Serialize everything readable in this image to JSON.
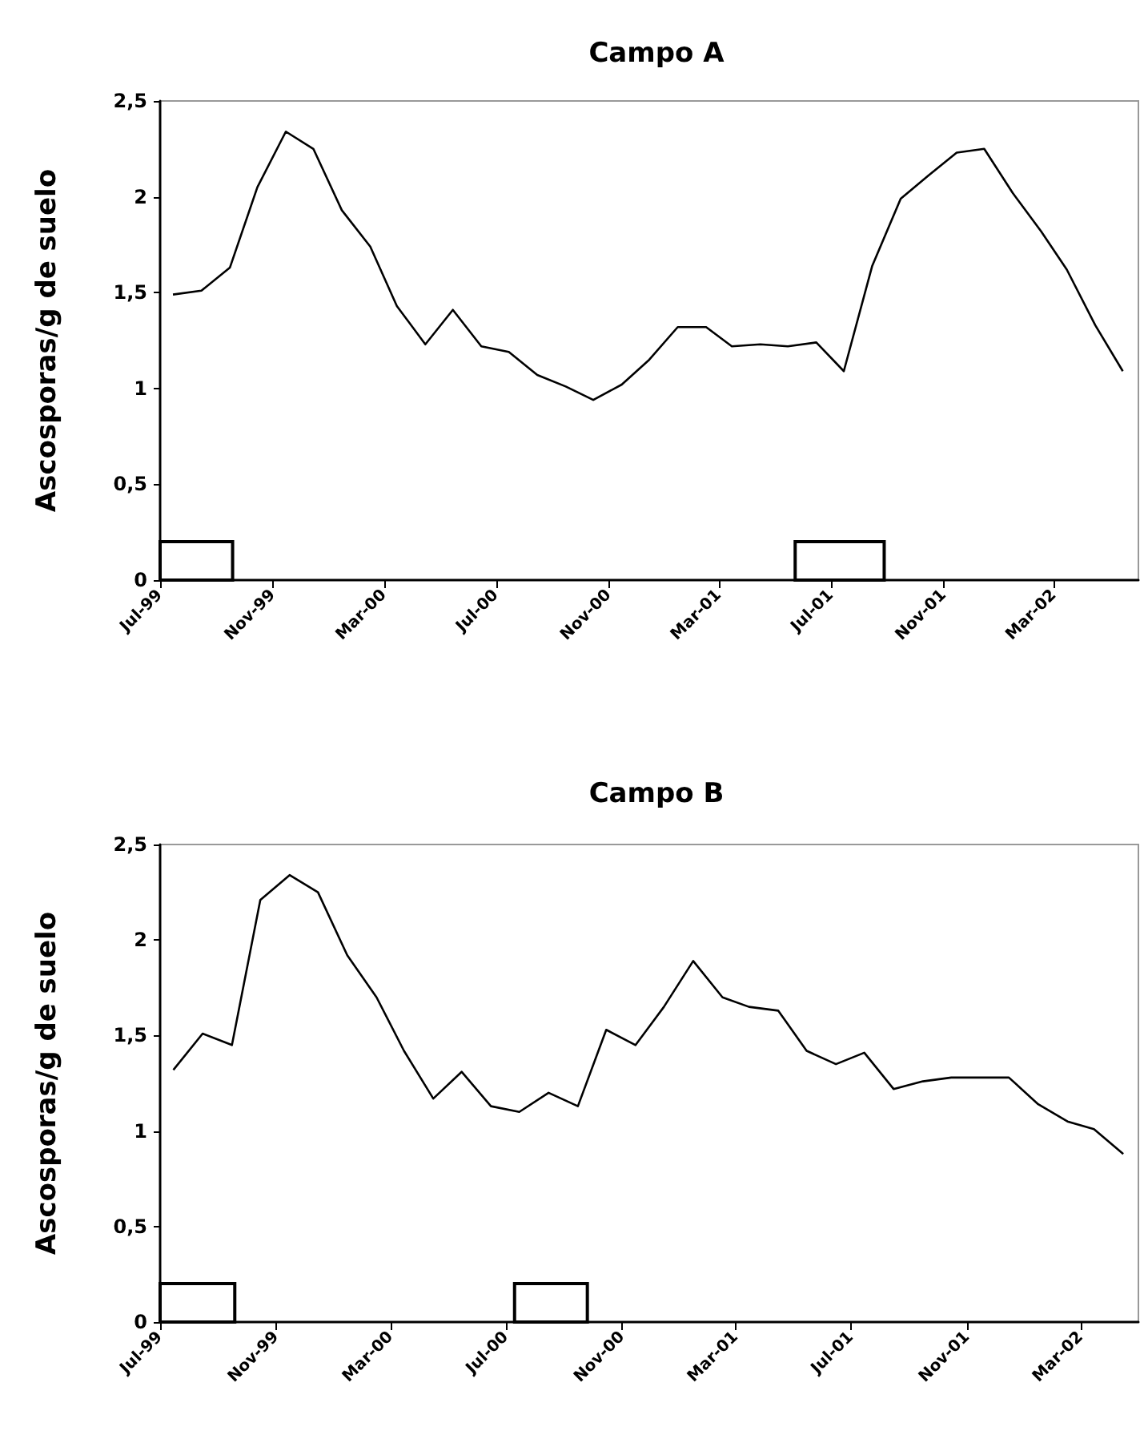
{
  "chart_data": [
    {
      "type": "line",
      "title": "Campo A",
      "ylabel": "Ascosporas/g de suelo",
      "x": [
        "1999-07-15",
        "1999-08-15",
        "1999-09-15",
        "1999-10-15",
        "1999-11-15",
        "1999-12-15",
        "2000-01-15",
        "2000-02-15",
        "2000-03-15",
        "2000-04-15",
        "2000-05-15",
        "2000-06-15",
        "2000-07-15",
        "2000-08-15",
        "2000-09-15",
        "2000-10-15",
        "2000-11-15",
        "2000-12-15",
        "2001-01-15",
        "2001-02-15",
        "2001-03-15",
        "2001-04-15",
        "2001-05-15",
        "2001-06-15",
        "2001-07-15",
        "2001-08-15",
        "2001-09-15",
        "2001-10-15",
        "2001-11-15",
        "2001-12-15",
        "2002-01-15",
        "2002-02-15",
        "2002-03-15",
        "2002-04-15",
        "2002-05-15"
      ],
      "series": [
        {
          "color": "#000000",
          "values": [
            1.49,
            1.51,
            1.63,
            2.05,
            2.34,
            2.25,
            1.93,
            1.74,
            1.43,
            1.23,
            1.41,
            1.22,
            1.19,
            1.07,
            1.01,
            0.94,
            1.02,
            1.15,
            1.32,
            1.32,
            1.22,
            1.23,
            1.22,
            1.24,
            1.09,
            1.64,
            1.99,
            2.11,
            2.23,
            2.25,
            2.02,
            1.82,
            1.62,
            1.33,
            1.09
          ]
        }
      ],
      "xlim": [
        "1999-07-01",
        "2002-06-01"
      ],
      "xticks": [
        {
          "value": "1999-07-01",
          "label": "Jul-99"
        },
        {
          "value": "1999-11-01",
          "label": "Nov-99"
        },
        {
          "value": "2000-03-01",
          "label": "Mar-00"
        },
        {
          "value": "2000-07-01",
          "label": "Jul-00"
        },
        {
          "value": "2000-11-01",
          "label": "Nov-00"
        },
        {
          "value": "2001-03-01",
          "label": "Mar-01"
        },
        {
          "value": "2001-07-01",
          "label": "Jul-01"
        },
        {
          "value": "2001-11-01",
          "label": "Nov-01"
        },
        {
          "value": "2002-03-01",
          "label": "Mar-02"
        }
      ],
      "ylim": [
        0,
        2.5
      ],
      "yticks": [
        0,
        {
          "value": 0.5,
          "label": "0,5"
        },
        1,
        {
          "value": 1.5,
          "label": "1,5"
        },
        2,
        {
          "value": 2.5,
          "label": "2,5"
        }
      ],
      "bands": [
        {
          "axis": "x",
          "from": "1999-07-01",
          "to": "1999-09-18",
          "color": "#000000"
        },
        {
          "axis": "x",
          "from": "2001-05-23",
          "to": "2001-08-28",
          "color": "#000000"
        }
      ],
      "grid": false,
      "marker": "none",
      "line_style": "solid"
    },
    {
      "type": "line",
      "title": "Campo B",
      "ylabel": "Ascosporas/g de suelo",
      "x": [
        "1999-07-15",
        "1999-08-15",
        "1999-09-15",
        "1999-10-15",
        "1999-11-15",
        "1999-12-15",
        "2000-01-15",
        "2000-02-15",
        "2000-03-15",
        "2000-04-15",
        "2000-05-15",
        "2000-06-15",
        "2000-07-15",
        "2000-08-15",
        "2000-09-15",
        "2000-10-15",
        "2000-11-15",
        "2000-12-15",
        "2001-01-15",
        "2001-02-15",
        "2001-03-15",
        "2001-04-15",
        "2001-05-15",
        "2001-06-15",
        "2001-07-15",
        "2001-08-15",
        "2001-09-15",
        "2001-10-15",
        "2001-11-15",
        "2001-12-15",
        "2002-01-15",
        "2002-02-15",
        "2002-03-15",
        "2002-04-15"
      ],
      "series": [
        {
          "color": "#000000",
          "values": [
            1.32,
            1.51,
            1.45,
            2.21,
            2.34,
            2.25,
            1.92,
            1.7,
            1.42,
            1.17,
            1.31,
            1.13,
            1.1,
            1.2,
            1.13,
            1.53,
            1.45,
            1.65,
            1.89,
            1.7,
            1.65,
            1.63,
            1.42,
            1.35,
            1.41,
            1.22,
            1.26,
            1.28,
            1.28,
            1.28,
            1.14,
            1.05,
            1.01,
            0.88
          ]
        }
      ],
      "xlim": [
        "1999-07-01",
        "2002-05-01"
      ],
      "xticks": [
        {
          "value": "1999-07-01",
          "label": "Jul-99"
        },
        {
          "value": "1999-11-01",
          "label": "Nov-99"
        },
        {
          "value": "2000-03-01",
          "label": "Mar-00"
        },
        {
          "value": "2000-07-01",
          "label": "Jul-00"
        },
        {
          "value": "2000-11-01",
          "label": "Nov-00"
        },
        {
          "value": "2001-03-01",
          "label": "Mar-01"
        },
        {
          "value": "2001-07-01",
          "label": "Jul-01"
        },
        {
          "value": "2001-11-01",
          "label": "Nov-01"
        },
        {
          "value": "2002-03-01",
          "label": "Mar-02"
        }
      ],
      "ylim": [
        0,
        2.5
      ],
      "yticks": [
        0,
        {
          "value": 0.5,
          "label": "0,5"
        },
        1,
        {
          "value": 1.5,
          "label": "1,5"
        },
        2,
        {
          "value": 2.5,
          "label": "2,5"
        }
      ],
      "bands": [
        {
          "axis": "x",
          "from": "1999-07-01",
          "to": "1999-09-18",
          "color": "#000000"
        },
        {
          "axis": "x",
          "from": "2000-07-10",
          "to": "2000-09-25",
          "color": "#000000"
        }
      ],
      "grid": false,
      "marker": "none",
      "line_style": "solid"
    }
  ]
}
